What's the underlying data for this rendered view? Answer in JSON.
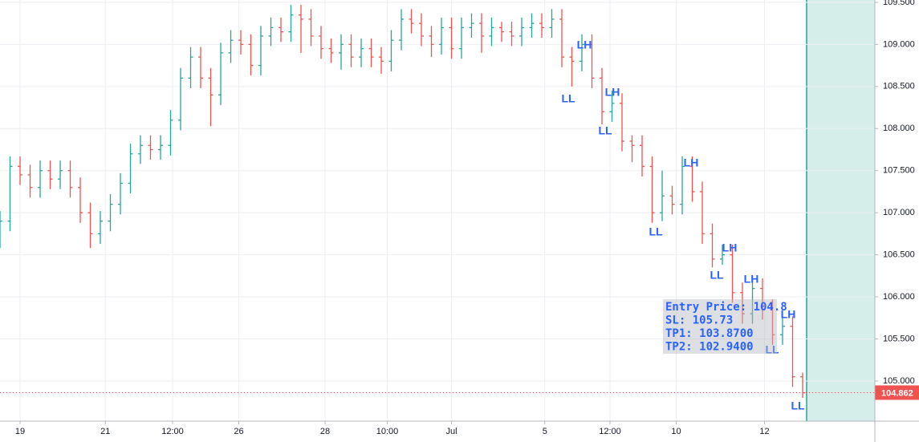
{
  "chart_data": {
    "type": "ohlc",
    "up_color": "#26a69a",
    "down_color": "#ef5350",
    "grid": true,
    "xlim": [
      0,
      87.2
    ],
    "ylim": [
      104.523,
      109.528
    ],
    "xticks": [
      {
        "value": 2,
        "label": "19"
      },
      {
        "value": 10.5,
        "label": "21"
      },
      {
        "value": 17.2,
        "label": "12:00"
      },
      {
        "value": 23.8,
        "label": "26"
      },
      {
        "value": 32.4,
        "label": "28"
      },
      {
        "value": 38.6,
        "label": "10:00"
      },
      {
        "value": 45,
        "label": "Jul"
      },
      {
        "value": 54.3,
        "label": "5"
      },
      {
        "value": 60.8,
        "label": "12:00"
      },
      {
        "value": 67.4,
        "label": "10"
      },
      {
        "value": 76.2,
        "label": "12"
      }
    ],
    "yticks": [
      {
        "value": 105,
        "label": "105.000"
      },
      {
        "value": 105.5,
        "label": "105.500"
      },
      {
        "value": 106,
        "label": "106.000"
      },
      {
        "value": 106.5,
        "label": "106.500"
      },
      {
        "value": 107,
        "label": "107.000"
      },
      {
        "value": 107.5,
        "label": "107.500"
      },
      {
        "value": 108,
        "label": "108.000"
      },
      {
        "value": 108.5,
        "label": "108.500"
      },
      {
        "value": 109,
        "label": "109.000"
      },
      {
        "value": 109.5,
        "label": "109.500"
      }
    ],
    "last_price": 104.862,
    "open": [
      106.7,
      106.9,
      107.55,
      107.45,
      107.3,
      107.5,
      107.4,
      107.5,
      107.3,
      107.0,
      106.75,
      106.9,
      107.1,
      107.35,
      107.7,
      107.8,
      107.75,
      107.8,
      108.1,
      108.6,
      108.85,
      108.6,
      108.4,
      108.9,
      109.05,
      109.0,
      108.75,
      109.1,
      109.2,
      109.15,
      109.35,
      109.3,
      109.1,
      108.95,
      108.9,
      109.0,
      108.85,
      108.95,
      108.85,
      108.8,
      109.05,
      109.3,
      109.25,
      109.1,
      109.0,
      109.2,
      108.95,
      109.2,
      109.25,
      109.1,
      109.2,
      109.15,
      109.1,
      109.2,
      109.25,
      109.2,
      109.3,
      108.85,
      108.8,
      109.0,
      108.6,
      108.2,
      108.3,
      107.85,
      107.8,
      107.55,
      107.0,
      107.2,
      107.1,
      107.55,
      107.25,
      106.75,
      106.45,
      106.5,
      106.05,
      105.8,
      106.1,
      105.85,
      105.55,
      105.65,
      105.05
    ],
    "high": [
      107.02,
      107.67,
      107.67,
      107.57,
      107.62,
      107.62,
      107.62,
      107.62,
      107.42,
      107.12,
      107.02,
      107.22,
      107.47,
      107.82,
      107.92,
      107.92,
      107.92,
      108.22,
      108.72,
      108.97,
      108.97,
      108.72,
      109.02,
      109.17,
      109.17,
      109.12,
      109.22,
      109.32,
      109.32,
      109.47,
      109.47,
      109.42,
      109.22,
      109.07,
      109.12,
      109.12,
      109.07,
      109.07,
      108.97,
      109.17,
      109.42,
      109.42,
      109.37,
      109.22,
      109.32,
      109.32,
      109.32,
      109.37,
      109.37,
      109.32,
      109.27,
      109.27,
      109.32,
      109.37,
      109.37,
      109.42,
      109.42,
      108.97,
      109.12,
      109.12,
      108.72,
      108.45,
      108.42,
      107.92,
      107.92,
      107.67,
      107.5,
      107.32,
      107.67,
      107.67,
      107.37,
      106.87,
      106.62,
      106.62,
      106.17,
      106.22,
      106.22,
      105.97,
      105.77,
      105.77,
      105.1
    ],
    "low": [
      106.58,
      106.78,
      107.33,
      107.18,
      107.18,
      107.28,
      107.28,
      107.18,
      106.88,
      106.58,
      106.63,
      106.78,
      106.98,
      107.23,
      107.58,
      107.63,
      107.63,
      107.68,
      107.98,
      108.48,
      108.48,
      108.03,
      108.28,
      108.78,
      108.88,
      108.63,
      108.63,
      108.98,
      109.03,
      109.03,
      108.9,
      108.98,
      108.83,
      108.78,
      108.7,
      108.73,
      108.73,
      108.73,
      108.65,
      108.68,
      108.93,
      109.13,
      108.98,
      108.85,
      108.88,
      108.83,
      108.83,
      109.08,
      108.9,
      108.98,
      109.03,
      108.98,
      108.98,
      109.08,
      109.08,
      109.08,
      108.73,
      108.5,
      108.68,
      108.48,
      108.05,
      108.08,
      107.73,
      107.6,
      107.43,
      106.88,
      106.9,
      106.98,
      106.98,
      107.13,
      106.63,
      106.35,
      106.38,
      105.93,
      105.68,
      105.68,
      105.73,
      105.43,
      105.43,
      104.93,
      104.8
    ],
    "close": [
      106.9,
      107.55,
      107.45,
      107.3,
      107.5,
      107.4,
      107.5,
      107.3,
      107.0,
      106.75,
      106.9,
      107.1,
      107.35,
      107.7,
      107.8,
      107.75,
      107.8,
      108.1,
      108.6,
      108.85,
      108.6,
      108.4,
      108.9,
      109.05,
      109.0,
      108.75,
      109.1,
      109.2,
      109.15,
      109.35,
      109.3,
      109.1,
      108.95,
      108.9,
      109.0,
      108.85,
      108.95,
      108.85,
      108.8,
      109.05,
      109.3,
      109.25,
      109.1,
      109.0,
      109.2,
      108.95,
      109.2,
      109.25,
      109.1,
      109.2,
      109.15,
      109.1,
      109.2,
      109.25,
      109.2,
      109.3,
      108.85,
      108.8,
      109.0,
      108.6,
      108.2,
      108.3,
      107.85,
      107.8,
      107.55,
      107.0,
      107.2,
      107.1,
      107.55,
      107.25,
      106.75,
      106.45,
      106.5,
      106.05,
      105.8,
      106.1,
      105.85,
      105.55,
      105.65,
      105.05,
      104.86
    ],
    "annotations": [
      "LL",
      "LH",
      "LH",
      "LL",
      "LH",
      "LL",
      "LH",
      "LL",
      "LH",
      "LL",
      "LH",
      "LL"
    ],
    "info_box": [
      "Entry Price: 104.8",
      "SL: 105.73",
      "TP1: 103.8700",
      "TP2: 102.9400"
    ]
  }
}
